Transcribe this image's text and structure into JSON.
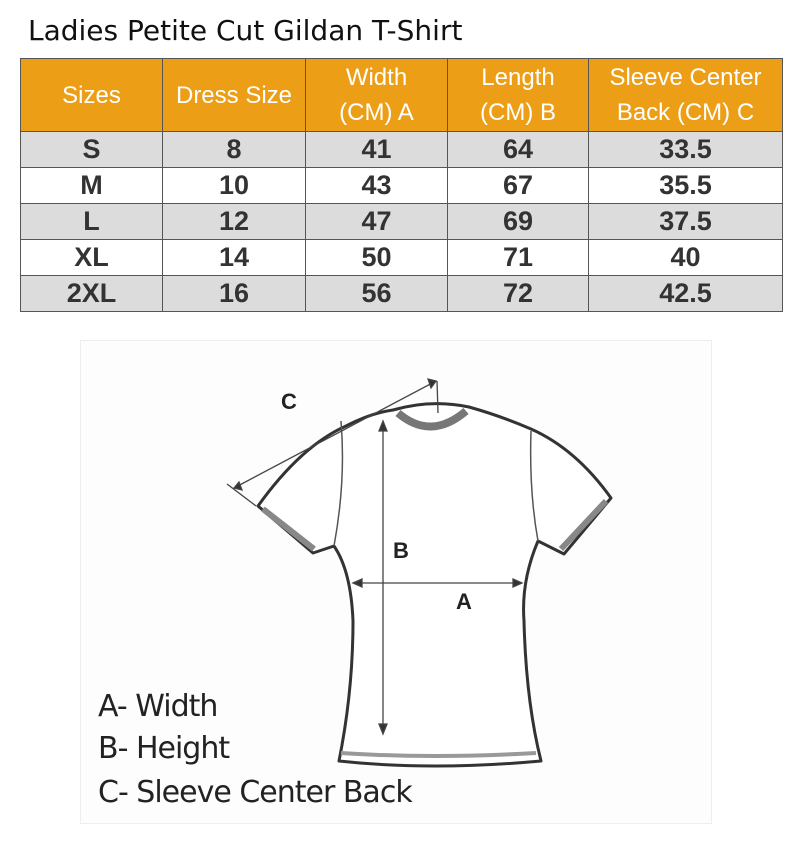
{
  "title": "Ladies Petite Cut Gildan T-Shirt",
  "table": {
    "headers": [
      [
        "Sizes",
        ""
      ],
      [
        "Dress Size",
        ""
      ],
      [
        "Width",
        "(CM) A"
      ],
      [
        "Length",
        "(CM) B"
      ],
      [
        "Sleeve Center",
        "Back (CM) C"
      ]
    ],
    "rows": [
      [
        "S",
        "8",
        "41",
        "64",
        "33.5"
      ],
      [
        "M",
        "10",
        "43",
        "67",
        "35.5"
      ],
      [
        "L",
        "12",
        "47",
        "69",
        "37.5"
      ],
      [
        "XL",
        "14",
        "50",
        "71",
        "40"
      ],
      [
        "2XL",
        "16",
        "56",
        "72",
        "42.5"
      ]
    ],
    "header_color": "#ec9e17",
    "stripe_color": "#dcdcdc"
  },
  "diagram": {
    "labels": {
      "a": "A",
      "b": "B",
      "c": "C"
    },
    "legend": [
      "A- Width",
      "B- Height",
      "C- Sleeve Center Back"
    ]
  }
}
